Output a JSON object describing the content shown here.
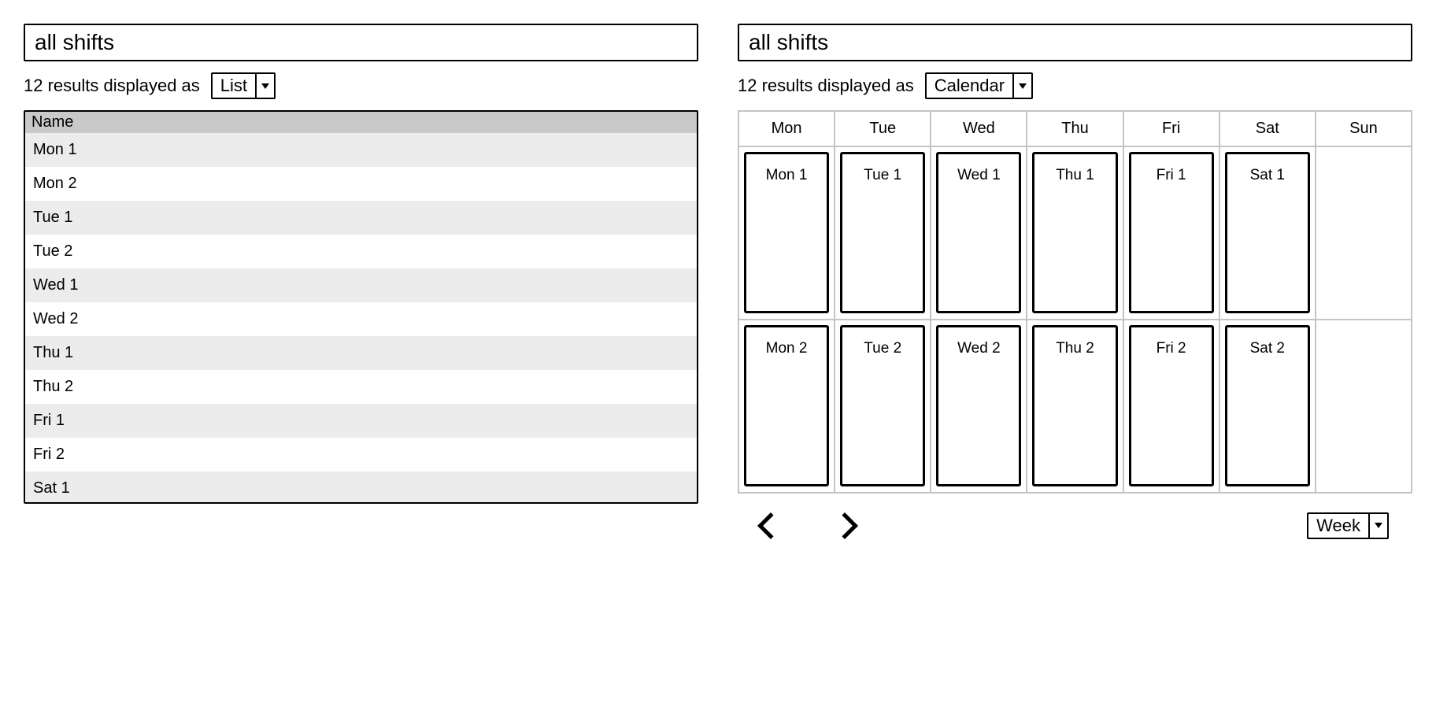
{
  "left": {
    "search_value": "all shifts",
    "results_text": "12 results displayed as",
    "view_dropdown": "List",
    "table": {
      "header": "Name",
      "rows": [
        "Mon 1",
        "Mon 2",
        "Tue 1",
        "Tue 2",
        "Wed 1",
        "Wed 2",
        "Thu 1",
        "Thu 2",
        "Fri 1",
        "Fri 2",
        "Sat 1"
      ]
    }
  },
  "right": {
    "search_value": "all shifts",
    "results_text": "12 results displayed as",
    "view_dropdown": "Calendar",
    "calendar": {
      "day_headers": [
        "Mon",
        "Tue",
        "Wed",
        "Thu",
        "Fri",
        "Sat",
        "Sun"
      ],
      "grid": [
        [
          "Mon 1",
          "Tue 1",
          "Wed 1",
          "Thu 1",
          "Fri 1",
          "Sat 1",
          null
        ],
        [
          "Mon 2",
          "Tue 2",
          "Wed 2",
          "Thu 2",
          "Fri 2",
          "Sat 2",
          null
        ]
      ]
    },
    "range_dropdown": "Week"
  },
  "style": {
    "row_odd_bg": "#ececec",
    "row_even_bg": "#ffffff",
    "header_bg": "#c9c9c9",
    "grid_line": "#c4c4c4",
    "border_color": "#000000"
  }
}
